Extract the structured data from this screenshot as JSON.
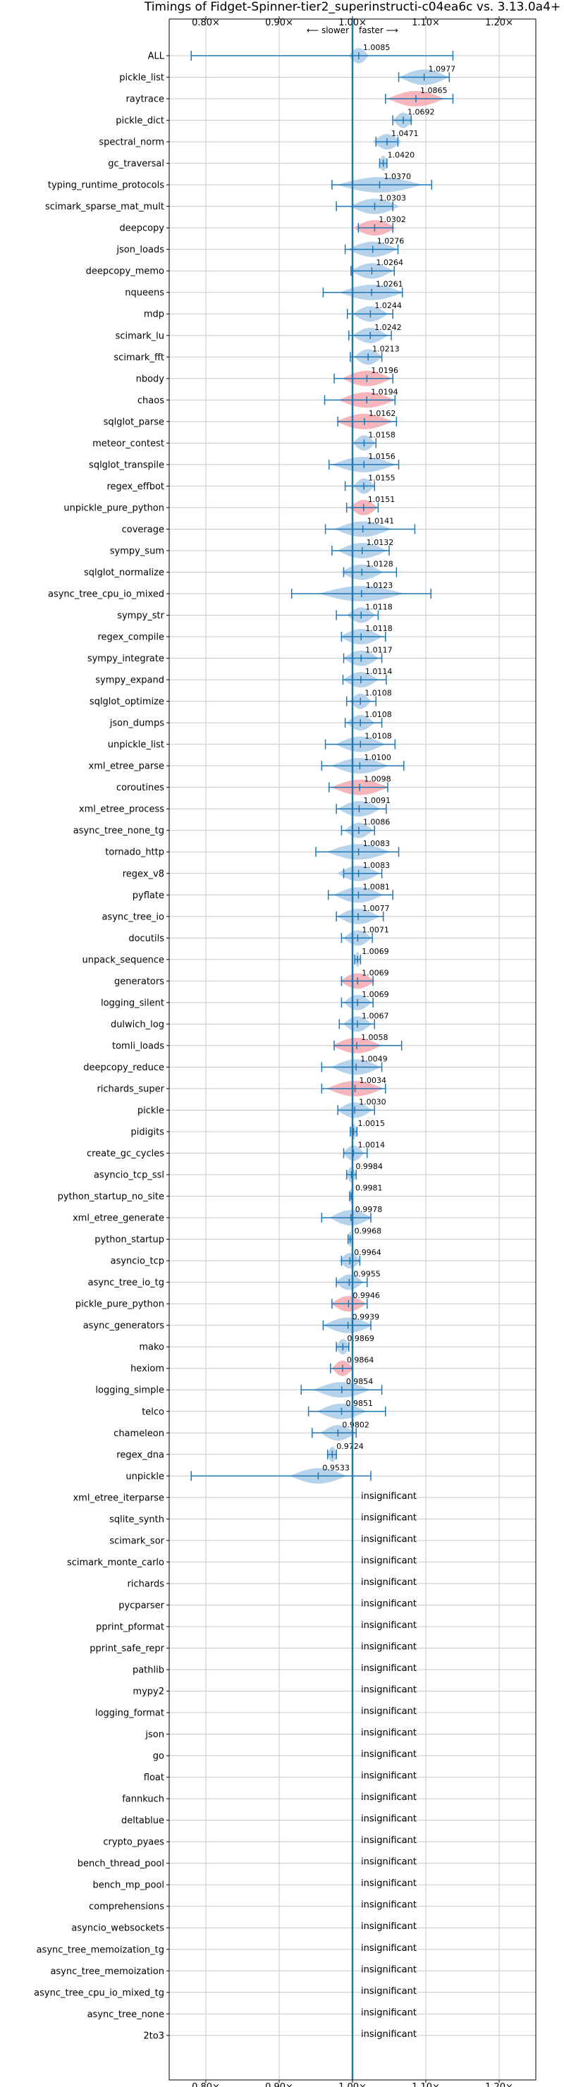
{
  "chart_data": {
    "type": "violin",
    "title": "Timings of Fidget-Spinner-tier2_superinstructi-c04ea6c vs. 3.13.0a4+",
    "subtitle_slower": "⟵ slower",
    "subtitle_faster": "faster ⟶",
    "xlim": [
      0.75,
      1.25
    ],
    "xticks": [
      {
        "value": 0.8,
        "label": "0.80×"
      },
      {
        "value": 0.9,
        "label": "0.90×"
      },
      {
        "value": 1.0,
        "label": "1.00×"
      },
      {
        "value": 1.1,
        "label": "1.10×"
      },
      {
        "value": 1.2,
        "label": "1.20×"
      }
    ],
    "grid": true,
    "colors": {
      "faster": "#aacbe8",
      "slower": "#f4a8ae",
      "line": "#1f77b4",
      "grid": "#c8c8c8"
    },
    "insignificant_label": "insignificant",
    "benchmarks": [
      {
        "name": "ALL",
        "label": "1.0085",
        "mean": 1.0085,
        "lo": 0.78,
        "hi": 1.137,
        "spread": 0.014,
        "state": "faster"
      },
      {
        "name": "pickle_list",
        "label": "1.0977",
        "mean": 1.0977,
        "lo": 1.063,
        "hi": 1.132,
        "spread": 0.035,
        "state": "faster"
      },
      {
        "name": "raytrace",
        "label": "1.0865",
        "mean": 1.0865,
        "lo": 1.045,
        "hi": 1.137,
        "spread": 0.04,
        "state": "slower"
      },
      {
        "name": "pickle_dict",
        "label": "1.0692",
        "mean": 1.0692,
        "lo": 1.055,
        "hi": 1.08,
        "spread": 0.014,
        "state": "faster"
      },
      {
        "name": "spectral_norm",
        "label": "1.0471",
        "mean": 1.0471,
        "lo": 1.032,
        "hi": 1.062,
        "spread": 0.02,
        "state": "faster"
      },
      {
        "name": "gc_traversal",
        "label": "1.0420",
        "mean": 1.042,
        "lo": 1.037,
        "hi": 1.047,
        "spread": 0.006,
        "state": "faster"
      },
      {
        "name": "typing_runtime_protocols",
        "label": "1.0370",
        "mean": 1.037,
        "lo": 0.972,
        "hi": 1.108,
        "spread": 0.06,
        "state": "faster"
      },
      {
        "name": "scimark_sparse_mat_mult",
        "label": "1.0303",
        "mean": 1.0303,
        "lo": 0.978,
        "hi": 1.055,
        "spread": 0.035,
        "state": "faster"
      },
      {
        "name": "deepcopy",
        "label": "1.0302",
        "mean": 1.0302,
        "lo": 1.008,
        "hi": 1.055,
        "spread": 0.03,
        "state": "slower"
      },
      {
        "name": "json_loads",
        "label": "1.0276",
        "mean": 1.0276,
        "lo": 0.99,
        "hi": 1.062,
        "spread": 0.035,
        "state": "faster"
      },
      {
        "name": "deepcopy_memo",
        "label": "1.0264",
        "mean": 1.0264,
        "lo": 0.998,
        "hi": 1.057,
        "spread": 0.03,
        "state": "faster"
      },
      {
        "name": "nqueens",
        "label": "1.0261",
        "mean": 1.0261,
        "lo": 0.96,
        "hi": 1.068,
        "spread": 0.045,
        "state": "faster"
      },
      {
        "name": "mdp",
        "label": "1.0244",
        "mean": 1.0244,
        "lo": 0.993,
        "hi": 1.055,
        "spread": 0.025,
        "state": "faster"
      },
      {
        "name": "scimark_lu",
        "label": "1.0242",
        "mean": 1.0242,
        "lo": 0.995,
        "hi": 1.053,
        "spread": 0.025,
        "state": "faster"
      },
      {
        "name": "scimark_fft",
        "label": "1.0213",
        "mean": 1.0213,
        "lo": 0.997,
        "hi": 1.04,
        "spread": 0.02,
        "state": "faster"
      },
      {
        "name": "nbody",
        "label": "1.0196",
        "mean": 1.0196,
        "lo": 0.975,
        "hi": 1.055,
        "spread": 0.035,
        "state": "slower"
      },
      {
        "name": "chaos",
        "label": "1.0194",
        "mean": 1.0194,
        "lo": 0.962,
        "hi": 1.058,
        "spread": 0.04,
        "state": "slower"
      },
      {
        "name": "sqlglot_parse",
        "label": "1.0162",
        "mean": 1.0162,
        "lo": 0.98,
        "hi": 1.06,
        "spread": 0.04,
        "state": "slower"
      },
      {
        "name": "meteor_contest",
        "label": "1.0158",
        "mean": 1.0158,
        "lo": 1.0,
        "hi": 1.032,
        "spread": 0.016,
        "state": "faster"
      },
      {
        "name": "sqlglot_transpile",
        "label": "1.0156",
        "mean": 1.0156,
        "lo": 0.968,
        "hi": 1.063,
        "spread": 0.045,
        "state": "faster"
      },
      {
        "name": "regex_effbot",
        "label": "1.0155",
        "mean": 1.0155,
        "lo": 0.99,
        "hi": 1.03,
        "spread": 0.015,
        "state": "faster"
      },
      {
        "name": "unpickle_pure_python",
        "label": "1.0151",
        "mean": 1.0151,
        "lo": 0.992,
        "hi": 1.035,
        "spread": 0.02,
        "state": "slower"
      },
      {
        "name": "coverage",
        "label": "1.0141",
        "mean": 1.0141,
        "lo": 0.963,
        "hi": 1.085,
        "spread": 0.04,
        "state": "faster"
      },
      {
        "name": "sympy_sum",
        "label": "1.0132",
        "mean": 1.0132,
        "lo": 0.972,
        "hi": 1.05,
        "spread": 0.035,
        "state": "faster"
      },
      {
        "name": "sqlglot_normalize",
        "label": "1.0128",
        "mean": 1.0128,
        "lo": 0.988,
        "hi": 1.06,
        "spread": 0.03,
        "state": "faster"
      },
      {
        "name": "async_tree_cpu_io_mixed",
        "label": "1.0123",
        "mean": 1.0123,
        "lo": 0.917,
        "hi": 1.107,
        "spread": 0.06,
        "state": "faster"
      },
      {
        "name": "sympy_str",
        "label": "1.0118",
        "mean": 1.0118,
        "lo": 0.978,
        "hi": 1.035,
        "spread": 0.02,
        "state": "faster"
      },
      {
        "name": "regex_compile",
        "label": "1.0118",
        "mean": 1.0118,
        "lo": 0.985,
        "hi": 1.045,
        "spread": 0.03,
        "state": "faster"
      },
      {
        "name": "sympy_integrate",
        "label": "1.0117",
        "mean": 1.0117,
        "lo": 0.988,
        "hi": 1.04,
        "spread": 0.025,
        "state": "faster"
      },
      {
        "name": "sympy_expand",
        "label": "1.0114",
        "mean": 1.0114,
        "lo": 0.987,
        "hi": 1.046,
        "spread": 0.025,
        "state": "faster"
      },
      {
        "name": "sqlglot_optimize",
        "label": "1.0108",
        "mean": 1.0108,
        "lo": 0.992,
        "hi": 1.032,
        "spread": 0.015,
        "state": "faster"
      },
      {
        "name": "json_dumps",
        "label": "1.0108",
        "mean": 1.0108,
        "lo": 0.99,
        "hi": 1.04,
        "spread": 0.02,
        "state": "faster"
      },
      {
        "name": "unpickle_list",
        "label": "1.0108",
        "mean": 1.0108,
        "lo": 0.963,
        "hi": 1.058,
        "spread": 0.035,
        "state": "faster"
      },
      {
        "name": "xml_etree_parse",
        "label": "1.0100",
        "mean": 1.01,
        "lo": 0.958,
        "hi": 1.07,
        "spread": 0.04,
        "state": "faster"
      },
      {
        "name": "coroutines",
        "label": "1.0098",
        "mean": 1.0098,
        "lo": 0.968,
        "hi": 1.048,
        "spread": 0.04,
        "state": "slower"
      },
      {
        "name": "xml_etree_process",
        "label": "1.0091",
        "mean": 1.0091,
        "lo": 0.978,
        "hi": 1.046,
        "spread": 0.03,
        "state": "faster"
      },
      {
        "name": "async_tree_none_tg",
        "label": "1.0086",
        "mean": 1.0086,
        "lo": 0.985,
        "hi": 1.03,
        "spread": 0.02,
        "state": "faster"
      },
      {
        "name": "tornado_http",
        "label": "1.0083",
        "mean": 1.0083,
        "lo": 0.95,
        "hi": 1.063,
        "spread": 0.045,
        "state": "faster"
      },
      {
        "name": "regex_v8",
        "label": "1.0083",
        "mean": 1.0083,
        "lo": 0.988,
        "hi": 1.04,
        "spread": 0.03,
        "state": "faster"
      },
      {
        "name": "pyflate",
        "label": "1.0081",
        "mean": 1.0081,
        "lo": 0.967,
        "hi": 1.055,
        "spread": 0.035,
        "state": "faster"
      },
      {
        "name": "async_tree_io",
        "label": "1.0077",
        "mean": 1.0077,
        "lo": 0.978,
        "hi": 1.042,
        "spread": 0.03,
        "state": "faster"
      },
      {
        "name": "docutils",
        "label": "1.0071",
        "mean": 1.0071,
        "lo": 0.985,
        "hi": 1.027,
        "spread": 0.02,
        "state": "faster"
      },
      {
        "name": "unpack_sequence",
        "label": "1.0069",
        "mean": 1.0069,
        "lo": 1.003,
        "hi": 1.011,
        "spread": 0.004,
        "state": "faster"
      },
      {
        "name": "generators",
        "label": "1.0069",
        "mean": 1.0069,
        "lo": 0.985,
        "hi": 1.028,
        "spread": 0.025,
        "state": "slower"
      },
      {
        "name": "logging_silent",
        "label": "1.0069",
        "mean": 1.0069,
        "lo": 0.985,
        "hi": 1.028,
        "spread": 0.02,
        "state": "faster"
      },
      {
        "name": "dulwich_log",
        "label": "1.0067",
        "mean": 1.0067,
        "lo": 0.982,
        "hi": 1.03,
        "spread": 0.02,
        "state": "faster"
      },
      {
        "name": "tomli_loads",
        "label": "1.0058",
        "mean": 1.0058,
        "lo": 0.975,
        "hi": 1.067,
        "spread": 0.035,
        "state": "slower"
      },
      {
        "name": "deepcopy_reduce",
        "label": "1.0049",
        "mean": 1.0049,
        "lo": 0.958,
        "hi": 1.04,
        "spread": 0.035,
        "state": "faster"
      },
      {
        "name": "richards_super",
        "label": "1.0034",
        "mean": 1.0034,
        "lo": 0.958,
        "hi": 1.045,
        "spread": 0.04,
        "state": "slower"
      },
      {
        "name": "pickle",
        "label": "1.0030",
        "mean": 1.003,
        "lo": 0.98,
        "hi": 1.03,
        "spread": 0.025,
        "state": "faster"
      },
      {
        "name": "pidigits",
        "label": "1.0015",
        "mean": 1.0015,
        "lo": 0.997,
        "hi": 1.006,
        "spread": 0.005,
        "state": "faster"
      },
      {
        "name": "create_gc_cycles",
        "label": "1.0014",
        "mean": 1.0014,
        "lo": 0.988,
        "hi": 1.02,
        "spread": 0.015,
        "state": "faster"
      },
      {
        "name": "asyncio_tcp_ssl",
        "label": "0.9984",
        "mean": 0.9984,
        "lo": 0.992,
        "hi": 1.005,
        "spread": 0.007,
        "state": "faster"
      },
      {
        "name": "python_startup_no_site",
        "label": "0.9981",
        "mean": 0.9981,
        "lo": 0.996,
        "hi": 1.0,
        "spread": 0.003,
        "state": "faster"
      },
      {
        "name": "xml_etree_generate",
        "label": "0.9978",
        "mean": 0.9978,
        "lo": 0.958,
        "hi": 1.025,
        "spread": 0.03,
        "state": "faster"
      },
      {
        "name": "python_startup",
        "label": "0.9968",
        "mean": 0.9968,
        "lo": 0.994,
        "hi": 1.0,
        "spread": 0.003,
        "state": "faster"
      },
      {
        "name": "asyncio_tcp",
        "label": "0.9964",
        "mean": 0.9964,
        "lo": 0.985,
        "hi": 1.01,
        "spread": 0.015,
        "state": "faster"
      },
      {
        "name": "async_tree_io_tg",
        "label": "0.9955",
        "mean": 0.9955,
        "lo": 0.978,
        "hi": 1.02,
        "spread": 0.02,
        "state": "faster"
      },
      {
        "name": "pickle_pure_python",
        "label": "0.9946",
        "mean": 0.9946,
        "lo": 0.972,
        "hi": 1.02,
        "spread": 0.025,
        "state": "slower"
      },
      {
        "name": "async_generators",
        "label": "0.9939",
        "mean": 0.9939,
        "lo": 0.96,
        "hi": 1.025,
        "spread": 0.035,
        "state": "faster"
      },
      {
        "name": "mako",
        "label": "0.9869",
        "mean": 0.9869,
        "lo": 0.978,
        "hi": 0.995,
        "spread": 0.01,
        "state": "faster"
      },
      {
        "name": "hexiom",
        "label": "0.9864",
        "mean": 0.9864,
        "lo": 0.97,
        "hi": 1.0,
        "spread": 0.015,
        "state": "slower"
      },
      {
        "name": "logging_simple",
        "label": "0.9854",
        "mean": 0.9854,
        "lo": 0.93,
        "hi": 1.04,
        "spread": 0.04,
        "state": "faster"
      },
      {
        "name": "telco",
        "label": "0.9851",
        "mean": 0.9851,
        "lo": 0.94,
        "hi": 1.045,
        "spread": 0.035,
        "state": "faster"
      },
      {
        "name": "chameleon",
        "label": "0.9802",
        "mean": 0.9802,
        "lo": 0.945,
        "hi": 1.005,
        "spread": 0.025,
        "state": "faster"
      },
      {
        "name": "regex_dna",
        "label": "0.9724",
        "mean": 0.9724,
        "lo": 0.966,
        "hi": 0.978,
        "spread": 0.007,
        "state": "faster"
      },
      {
        "name": "unpickle",
        "label": "0.9533",
        "mean": 0.9533,
        "lo": 0.78,
        "hi": 1.025,
        "spread": 0.04,
        "state": "faster"
      },
      {
        "name": "xml_etree_iterparse",
        "state": "insignificant"
      },
      {
        "name": "sqlite_synth",
        "state": "insignificant"
      },
      {
        "name": "scimark_sor",
        "state": "insignificant"
      },
      {
        "name": "scimark_monte_carlo",
        "state": "insignificant"
      },
      {
        "name": "richards",
        "state": "insignificant"
      },
      {
        "name": "pycparser",
        "state": "insignificant"
      },
      {
        "name": "pprint_pformat",
        "state": "insignificant"
      },
      {
        "name": "pprint_safe_repr",
        "state": "insignificant"
      },
      {
        "name": "pathlib",
        "state": "insignificant"
      },
      {
        "name": "mypy2",
        "state": "insignificant"
      },
      {
        "name": "logging_format",
        "state": "insignificant"
      },
      {
        "name": "json",
        "state": "insignificant"
      },
      {
        "name": "go",
        "state": "insignificant"
      },
      {
        "name": "float",
        "state": "insignificant"
      },
      {
        "name": "fannkuch",
        "state": "insignificant"
      },
      {
        "name": "deltablue",
        "state": "insignificant"
      },
      {
        "name": "crypto_pyaes",
        "state": "insignificant"
      },
      {
        "name": "bench_thread_pool",
        "state": "insignificant"
      },
      {
        "name": "bench_mp_pool",
        "state": "insignificant"
      },
      {
        "name": "comprehensions",
        "state": "insignificant"
      },
      {
        "name": "asyncio_websockets",
        "state": "insignificant"
      },
      {
        "name": "async_tree_memoization_tg",
        "state": "insignificant"
      },
      {
        "name": "async_tree_memoization",
        "state": "insignificant"
      },
      {
        "name": "async_tree_cpu_io_mixed_tg",
        "state": "insignificant"
      },
      {
        "name": "async_tree_none",
        "state": "insignificant"
      },
      {
        "name": "2to3",
        "state": "insignificant"
      }
    ]
  }
}
